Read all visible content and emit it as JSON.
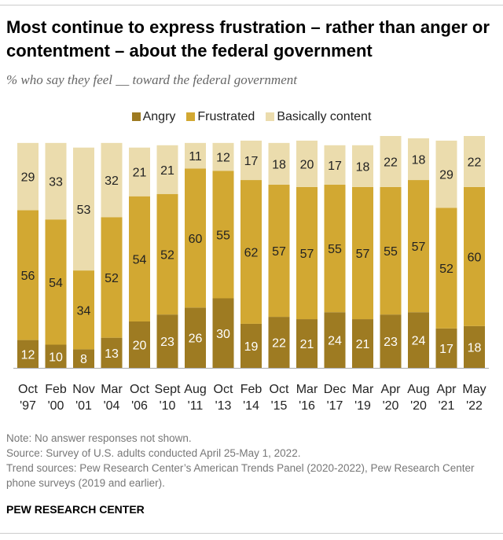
{
  "chart_data": {
    "type": "bar",
    "stacked": true,
    "title": "Most continue to express frustration – rather than anger or contentment – about the federal government",
    "subtitle": "% who say they feel __ toward the federal government",
    "categories": [
      [
        "Oct",
        "'97"
      ],
      [
        "Feb",
        "'00"
      ],
      [
        "Nov",
        "'01"
      ],
      [
        "Mar",
        "'04"
      ],
      [
        "Oct",
        "'06"
      ],
      [
        "Sept",
        "'10"
      ],
      [
        "Aug",
        "'11"
      ],
      [
        "Oct",
        "'13"
      ],
      [
        "Feb",
        "'14"
      ],
      [
        "Oct",
        "'15"
      ],
      [
        "Mar",
        "'16"
      ],
      [
        "Dec",
        "'17"
      ],
      [
        "Mar",
        "'19"
      ],
      [
        "Apr",
        "'20"
      ],
      [
        "Aug",
        "'20"
      ],
      [
        "Apr",
        "'21"
      ],
      [
        "May",
        "'22"
      ]
    ],
    "series": [
      {
        "name": "Angry",
        "color": "#9e7b22",
        "values": [
          12,
          10,
          8,
          13,
          20,
          23,
          26,
          30,
          19,
          22,
          21,
          24,
          21,
          23,
          24,
          17,
          18
        ]
      },
      {
        "name": "Frustrated",
        "color": "#d2a832",
        "values": [
          56,
          54,
          34,
          52,
          54,
          52,
          60,
          55,
          62,
          57,
          57,
          55,
          57,
          55,
          57,
          52,
          60
        ]
      },
      {
        "name": "Basically content",
        "color": "#ebdcad",
        "values": [
          29,
          33,
          53,
          32,
          21,
          21,
          11,
          12,
          17,
          18,
          20,
          17,
          18,
          22,
          18,
          29,
          22
        ]
      }
    ],
    "legend": "top-center"
  },
  "notes": [
    "Note: No answer responses not shown.",
    "Source: Survey of U.S. adults conducted April 25-May 1, 2022.",
    "Trend sources: Pew Research Center’s American Trends Panel (2020-2022), Pew Research Center phone surveys (2019 and earlier)."
  ],
  "brand": "PEW RESEARCH CENTER"
}
